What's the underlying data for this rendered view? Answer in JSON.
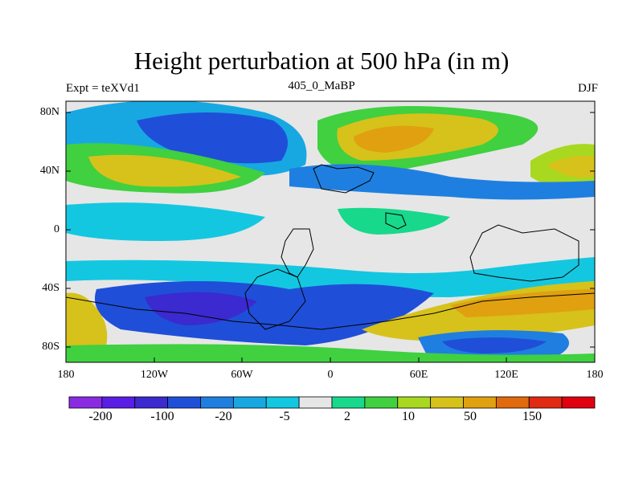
{
  "header": {
    "title": "Height perturbation at 500 hPa (in m)",
    "left": "Expt = teXVd1",
    "center": "405_0_MaBP",
    "right": "DJF"
  },
  "axes": {
    "y_ticks": [
      "80N",
      "40N",
      "0",
      "40S",
      "80S"
    ],
    "x_ticks": [
      "180",
      "120W",
      "60W",
      "0",
      "60E",
      "120E",
      "180"
    ]
  },
  "colorbar": {
    "labels": [
      "-200",
      "-100",
      "-20",
      "-5",
      "2",
      "10",
      "50",
      "150"
    ],
    "colors": [
      "#8a2be2",
      "#5a1ee6",
      "#3a2ad0",
      "#1f4fd8",
      "#1f7fe0",
      "#17a8e2",
      "#14c7e0",
      "#e6e6e6",
      "#18d88c",
      "#40d040",
      "#a8d820",
      "#d6c21a",
      "#e0a010",
      "#e06a0c",
      "#e02a14",
      "#e00010"
    ]
  },
  "colors": {
    "neutral": "#e6e6e6",
    "land_outline": "#000000"
  }
}
